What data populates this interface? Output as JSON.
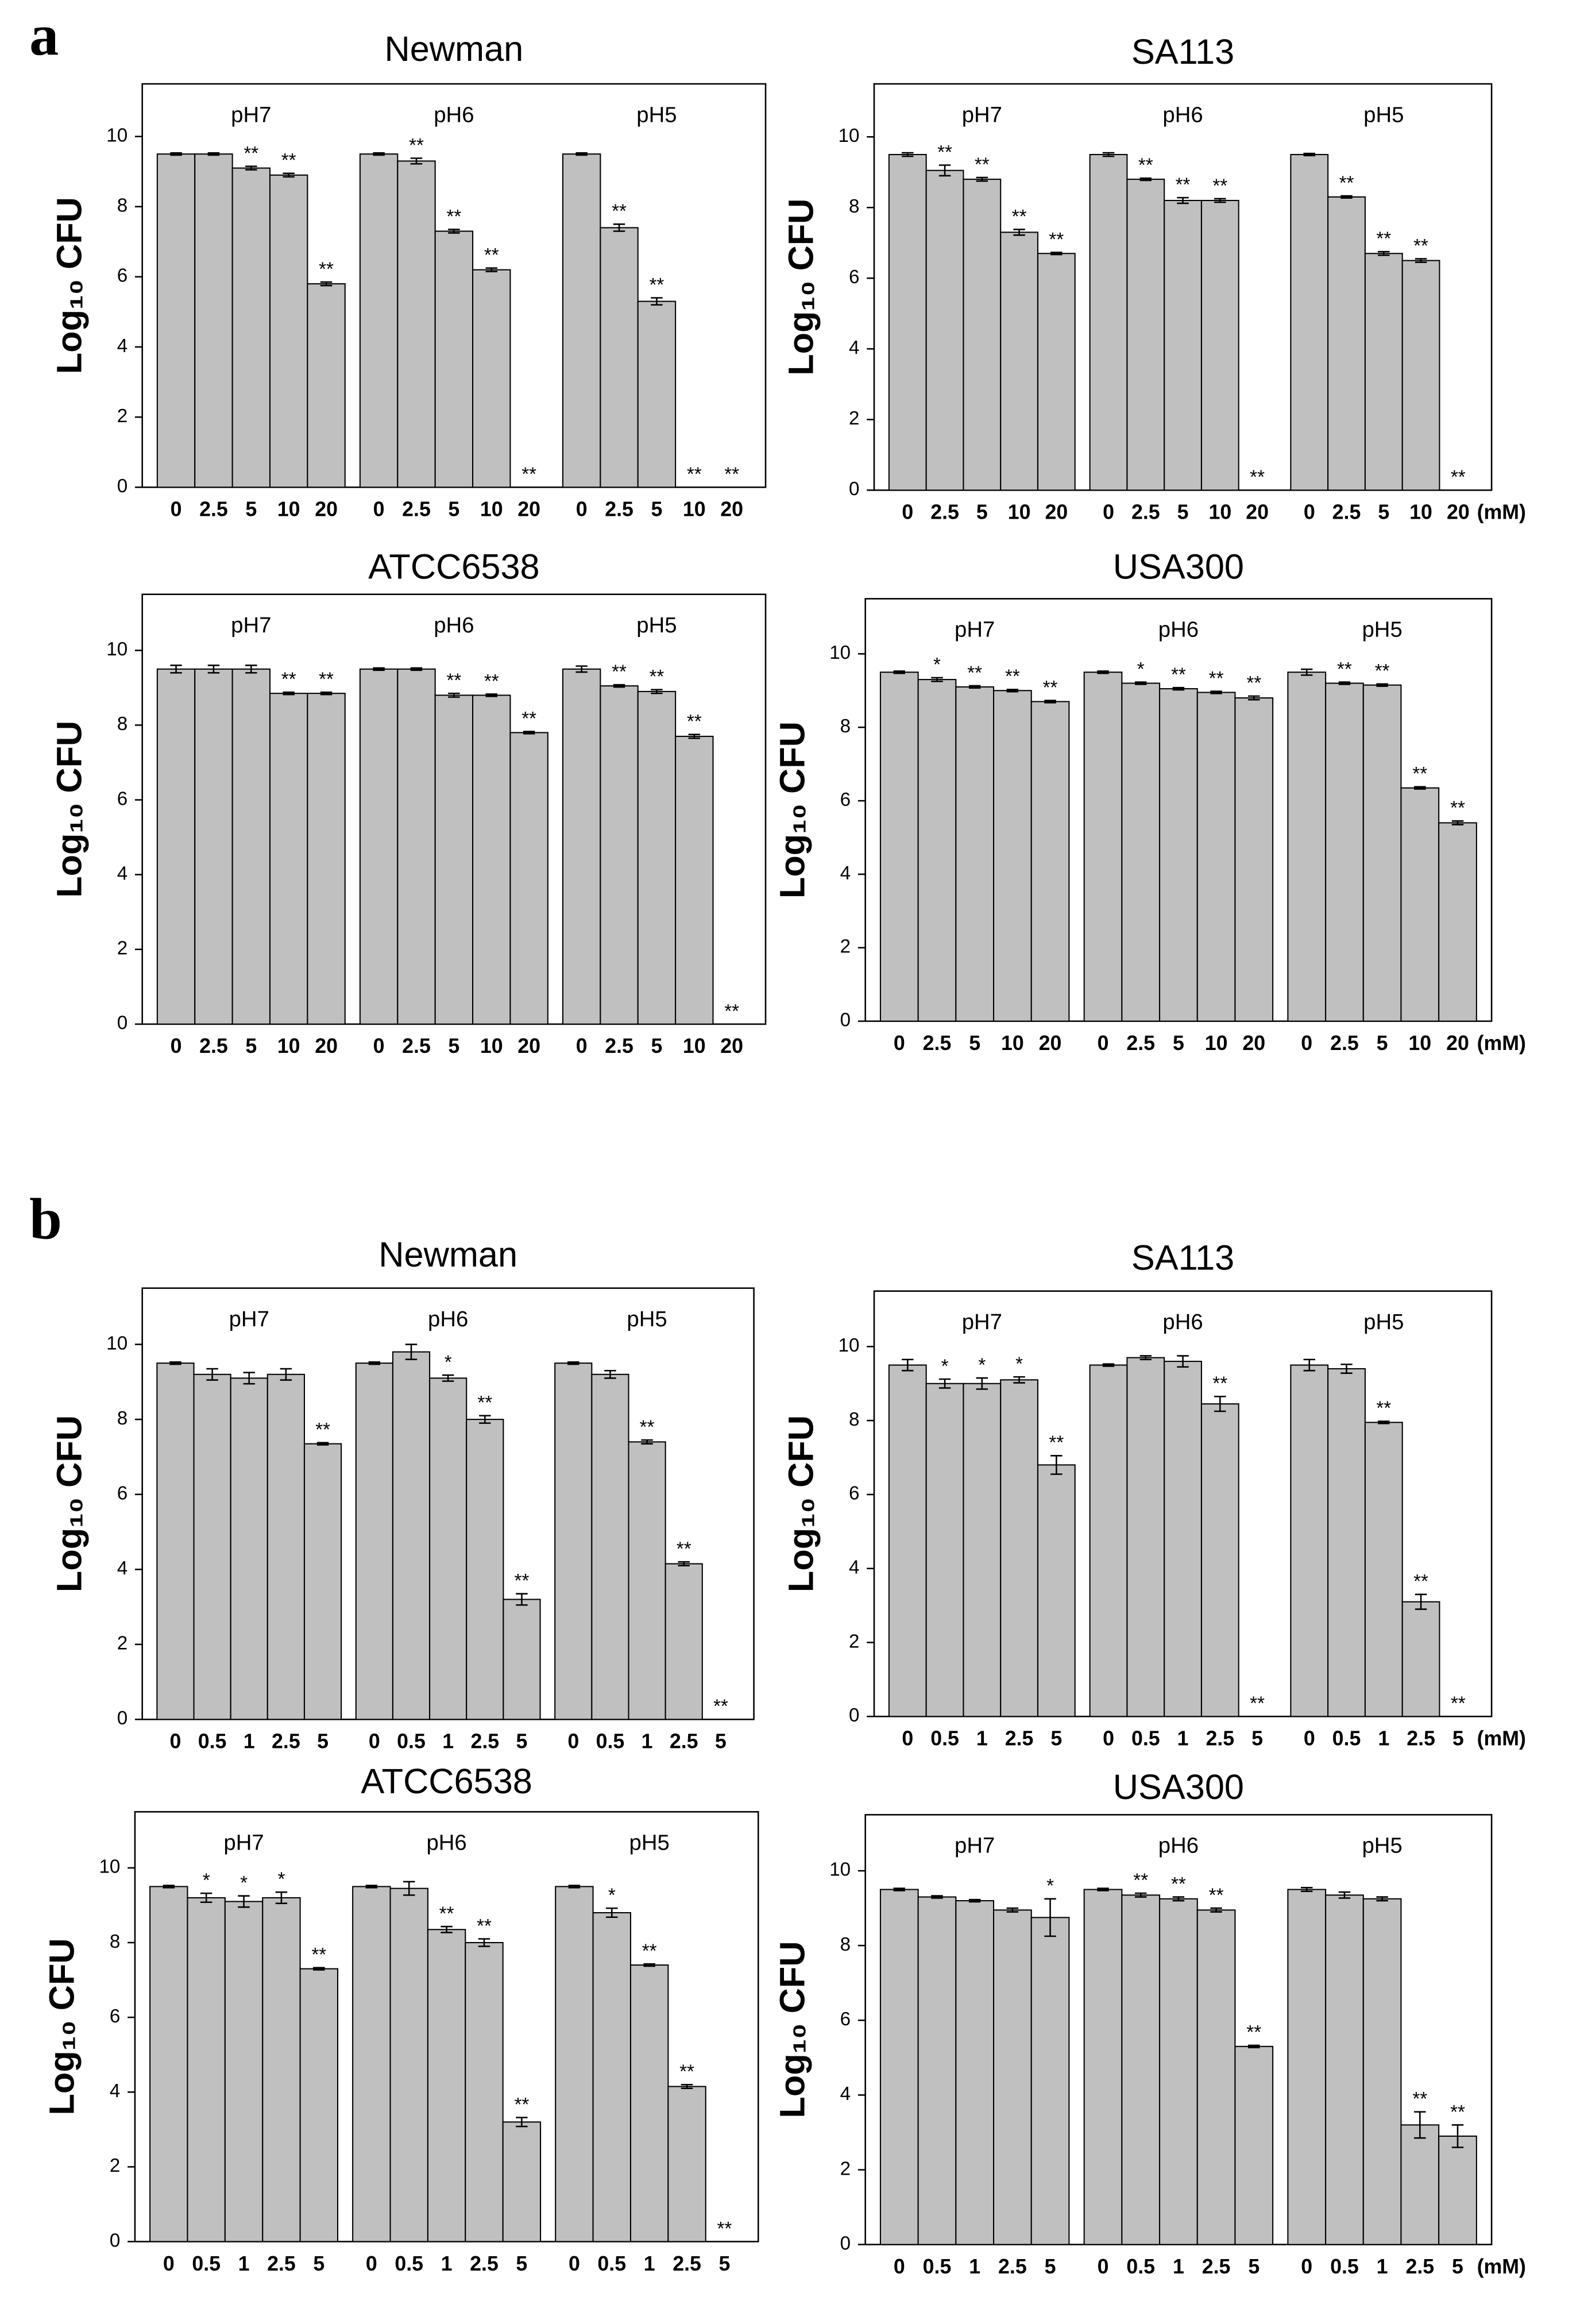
{
  "panel_labels": [
    "a",
    "b"
  ],
  "chart_data": [
    {
      "type": "bar",
      "title": "Newman",
      "ylabel": "Log₁₀ CFU",
      "color": "#c0c0c0",
      "ylim": [
        0,
        11.5
      ],
      "yticks": [
        0,
        2,
        4,
        6,
        8,
        10
      ],
      "groups": [
        {
          "label": "pH7",
          "categories": [
            "0",
            "2.5",
            "5",
            "10",
            "20"
          ],
          "values": [
            9.5,
            9.5,
            9.1,
            8.9,
            5.8
          ],
          "errors": [
            0.03,
            0.03,
            0.05,
            0.05,
            0.05
          ],
          "annotations": [
            null,
            null,
            "**",
            "**",
            "**"
          ]
        },
        {
          "label": "pH6",
          "categories": [
            "0",
            "2.5",
            "5",
            "10",
            "20"
          ],
          "values": [
            9.5,
            9.3,
            7.3,
            6.2,
            0
          ],
          "errors": [
            0.03,
            0.08,
            0.05,
            0.05,
            0
          ],
          "annotations": [
            null,
            "**",
            "**",
            "**",
            "**"
          ]
        },
        {
          "label": "pH5",
          "categories": [
            "0",
            "2.5",
            "5",
            "10",
            "20"
          ],
          "values": [
            9.5,
            7.4,
            5.3,
            0,
            0
          ],
          "errors": [
            0.03,
            0.1,
            0.1,
            0,
            0
          ],
          "annotations": [
            null,
            "**",
            "**",
            "**",
            "**"
          ]
        }
      ]
    },
    {
      "type": "bar",
      "title": "SA113",
      "ylabel": "Log₁₀ CFU",
      "color": "#c0c0c0",
      "ylim": [
        0,
        11.5
      ],
      "yticks": [
        0,
        2,
        4,
        6,
        8,
        10
      ],
      "x_unit": "(mM)",
      "groups": [
        {
          "label": "pH7",
          "categories": [
            "0",
            "2.5",
            "5",
            "10",
            "20"
          ],
          "values": [
            9.5,
            9.05,
            8.8,
            7.3,
            6.7
          ],
          "errors": [
            0.05,
            0.15,
            0.05,
            0.08,
            0.03
          ],
          "annotations": [
            null,
            "**",
            "**",
            "**",
            "**"
          ]
        },
        {
          "label": "pH6",
          "categories": [
            "0",
            "2.5",
            "5",
            "10",
            "20"
          ],
          "values": [
            9.5,
            8.8,
            8.2,
            8.2,
            0
          ],
          "errors": [
            0.05,
            0.03,
            0.08,
            0.05,
            0
          ],
          "annotations": [
            null,
            "**",
            "**",
            "**",
            "**"
          ]
        },
        {
          "label": "pH5",
          "categories": [
            "0",
            "2.5",
            "5",
            "10",
            "20"
          ],
          "values": [
            9.5,
            8.3,
            6.7,
            6.5,
            0
          ],
          "errors": [
            0.03,
            0.03,
            0.05,
            0.05,
            0
          ],
          "annotations": [
            null,
            "**",
            "**",
            "**",
            "**"
          ]
        }
      ]
    },
    {
      "type": "bar",
      "title": "ATCC6538",
      "ylabel": "Log₁₀ CFU",
      "color": "#c0c0c0",
      "ylim": [
        0,
        11.5
      ],
      "yticks": [
        0,
        2,
        4,
        6,
        8,
        10
      ],
      "groups": [
        {
          "label": "pH7",
          "categories": [
            "0",
            "2.5",
            "5",
            "10",
            "20"
          ],
          "values": [
            9.5,
            9.5,
            9.5,
            8.85,
            8.85
          ],
          "errors": [
            0.1,
            0.1,
            0.1,
            0.03,
            0.03
          ],
          "annotations": [
            null,
            null,
            null,
            "**",
            "**"
          ]
        },
        {
          "label": "pH6",
          "categories": [
            "0",
            "2.5",
            "5",
            "10",
            "20"
          ],
          "values": [
            9.5,
            9.5,
            8.8,
            8.8,
            7.8
          ],
          "errors": [
            0.03,
            0.03,
            0.05,
            0.03,
            0.03
          ],
          "annotations": [
            null,
            null,
            "**",
            "**",
            "**"
          ]
        },
        {
          "label": "pH5",
          "categories": [
            "0",
            "2.5",
            "5",
            "10",
            "20"
          ],
          "values": [
            9.5,
            9.05,
            8.9,
            7.7,
            0
          ],
          "errors": [
            0.08,
            0.03,
            0.05,
            0.05,
            0
          ],
          "annotations": [
            null,
            "**",
            "**",
            "**",
            "**"
          ]
        }
      ]
    },
    {
      "type": "bar",
      "title": "USA300",
      "ylabel": "Log₁₀ CFU",
      "color": "#c0c0c0",
      "ylim": [
        0,
        11.5
      ],
      "yticks": [
        0,
        2,
        4,
        6,
        8,
        10
      ],
      "x_unit": "(mM)",
      "groups": [
        {
          "label": "pH7",
          "categories": [
            "0",
            "2.5",
            "5",
            "10",
            "20"
          ],
          "values": [
            9.5,
            9.3,
            9.1,
            9.0,
            8.7
          ],
          "errors": [
            0.03,
            0.05,
            0.03,
            0.03,
            0.03
          ],
          "annotations": [
            null,
            "*",
            "**",
            "**",
            "**"
          ]
        },
        {
          "label": "pH6",
          "categories": [
            "0",
            "2.5",
            "5",
            "10",
            "20"
          ],
          "values": [
            9.5,
            9.2,
            9.05,
            8.95,
            8.8
          ],
          "errors": [
            0.03,
            0.03,
            0.03,
            0.03,
            0.05
          ],
          "annotations": [
            null,
            "*",
            "**",
            "**",
            "**"
          ]
        },
        {
          "label": "pH5",
          "categories": [
            "0",
            "2.5",
            "5",
            "10",
            "20"
          ],
          "values": [
            9.5,
            9.2,
            9.15,
            6.35,
            5.4
          ],
          "errors": [
            0.08,
            0.03,
            0.03,
            0.03,
            0.05
          ],
          "annotations": [
            null,
            "**",
            "**",
            "**",
            "**"
          ]
        }
      ]
    },
    {
      "type": "bar",
      "title": "Newman",
      "ylabel": "Log₁₀ CFU",
      "color": "#c0c0c0",
      "ylim": [
        0,
        11.5
      ],
      "yticks": [
        0,
        2,
        4,
        6,
        8,
        10
      ],
      "groups": [
        {
          "label": "pH7",
          "categories": [
            "0",
            "0.5",
            "1",
            "2.5",
            "5"
          ],
          "values": [
            9.5,
            9.2,
            9.1,
            9.2,
            7.35
          ],
          "errors": [
            0.03,
            0.15,
            0.15,
            0.15,
            0.03
          ],
          "annotations": [
            null,
            null,
            null,
            null,
            "**"
          ]
        },
        {
          "label": "pH6",
          "categories": [
            "0",
            "0.5",
            "1",
            "2.5",
            "5"
          ],
          "values": [
            9.5,
            9.8,
            9.1,
            8.0,
            3.2
          ],
          "errors": [
            0.03,
            0.2,
            0.08,
            0.1,
            0.15
          ],
          "annotations": [
            null,
            null,
            "*",
            "**",
            "**"
          ]
        },
        {
          "label": "pH5",
          "categories": [
            "0",
            "0.5",
            "1",
            "2.5",
            "5"
          ],
          "values": [
            9.5,
            9.2,
            7.4,
            4.15,
            0
          ],
          "errors": [
            0.03,
            0.1,
            0.05,
            0.05,
            0
          ],
          "annotations": [
            null,
            null,
            "**",
            "**",
            "**"
          ]
        }
      ]
    },
    {
      "type": "bar",
      "title": "SA113",
      "ylabel": "Log₁₀ CFU",
      "color": "#c0c0c0",
      "ylim": [
        0,
        11.5
      ],
      "yticks": [
        0,
        2,
        4,
        6,
        8,
        10
      ],
      "x_unit": "(mM)",
      "groups": [
        {
          "label": "pH7",
          "categories": [
            "0",
            "0.5",
            "1",
            "2.5",
            "5"
          ],
          "values": [
            9.5,
            9.0,
            9.0,
            9.1,
            6.8
          ],
          "errors": [
            0.15,
            0.12,
            0.15,
            0.08,
            0.25
          ],
          "annotations": [
            null,
            "*",
            "*",
            "*",
            "**"
          ]
        },
        {
          "label": "pH6",
          "categories": [
            "0",
            "0.5",
            "1",
            "2.5",
            "5"
          ],
          "values": [
            9.5,
            9.7,
            9.6,
            8.45,
            0
          ],
          "errors": [
            0.03,
            0.05,
            0.15,
            0.2,
            0
          ],
          "annotations": [
            null,
            null,
            null,
            "**",
            "**"
          ]
        },
        {
          "label": "pH5",
          "categories": [
            "0",
            "0.5",
            "1",
            "2.5",
            "5"
          ],
          "values": [
            9.5,
            9.4,
            7.95,
            3.1,
            0
          ],
          "errors": [
            0.15,
            0.12,
            0.03,
            0.2,
            0
          ],
          "annotations": [
            null,
            null,
            "**",
            "**",
            "**"
          ]
        }
      ]
    },
    {
      "type": "bar",
      "title": "ATCC6538",
      "ylabel": "Log₁₀ CFU",
      "color": "#c0c0c0",
      "ylim": [
        0,
        11.5
      ],
      "yticks": [
        0,
        2,
        4,
        6,
        8,
        10
      ],
      "groups": [
        {
          "label": "pH7",
          "categories": [
            "0",
            "0.5",
            "1",
            "2.5",
            "5"
          ],
          "values": [
            9.5,
            9.2,
            9.1,
            9.2,
            7.3
          ],
          "errors": [
            0.03,
            0.12,
            0.15,
            0.15,
            0.03
          ],
          "annotations": [
            null,
            "*",
            "*",
            "*",
            "**"
          ]
        },
        {
          "label": "pH6",
          "categories": [
            "0",
            "0.5",
            "1",
            "2.5",
            "5"
          ],
          "values": [
            9.5,
            9.45,
            8.35,
            8.0,
            3.2
          ],
          "errors": [
            0.03,
            0.18,
            0.08,
            0.1,
            0.12
          ],
          "annotations": [
            null,
            null,
            "**",
            "**",
            "**"
          ]
        },
        {
          "label": "pH5",
          "categories": [
            "0",
            "0.5",
            "1",
            "2.5",
            "5"
          ],
          "values": [
            9.5,
            8.8,
            7.4,
            4.15,
            0
          ],
          "errors": [
            0.03,
            0.12,
            0.03,
            0.05,
            0
          ],
          "annotations": [
            null,
            "*",
            "**",
            "**",
            "**"
          ]
        }
      ]
    },
    {
      "type": "bar",
      "title": "USA300",
      "ylabel": "Log₁₀ CFU",
      "color": "#c0c0c0",
      "ylim": [
        0,
        11.5
      ],
      "yticks": [
        0,
        2,
        4,
        6,
        8,
        10
      ],
      "x_unit": "(mM)",
      "groups": [
        {
          "label": "pH7",
          "categories": [
            "0",
            "0.5",
            "1",
            "2.5",
            "5"
          ],
          "values": [
            9.5,
            9.3,
            9.2,
            8.95,
            8.75
          ],
          "errors": [
            0.03,
            0.03,
            0.03,
            0.05,
            0.5
          ],
          "annotations": [
            null,
            null,
            null,
            null,
            "*"
          ]
        },
        {
          "label": "pH6",
          "categories": [
            "0",
            "0.5",
            "1",
            "2.5",
            "5"
          ],
          "values": [
            9.5,
            9.35,
            9.25,
            8.95,
            5.3
          ],
          "errors": [
            0.03,
            0.05,
            0.05,
            0.05,
            0.03
          ],
          "annotations": [
            null,
            "**",
            "**",
            "**",
            "**"
          ]
        },
        {
          "label": "pH5",
          "categories": [
            "0",
            "0.5",
            "1",
            "2.5",
            "5"
          ],
          "values": [
            9.5,
            9.35,
            9.25,
            3.2,
            2.9
          ],
          "errors": [
            0.05,
            0.08,
            0.05,
            0.35,
            0.3
          ],
          "annotations": [
            null,
            null,
            null,
            "**",
            "**"
          ]
        }
      ]
    }
  ]
}
